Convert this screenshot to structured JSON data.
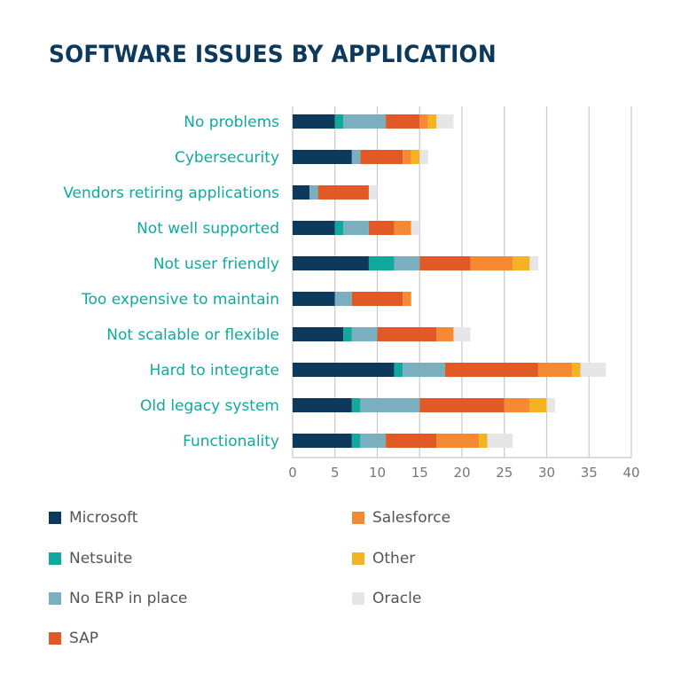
{
  "chart_data": {
    "type": "bar",
    "orientation": "horizontal",
    "stacked": true,
    "title": "SOFTWARE ISSUES BY APPLICATION",
    "categories": [
      "No problems",
      "Cybersecurity",
      "Vendors retiring applications",
      "Not well supported",
      "Not user friendly",
      "Too expensive to maintain",
      "Not scalable or flexible",
      "Hard to integrate",
      "Old legacy system",
      "Functionality"
    ],
    "series": [
      {
        "name": "Microsoft",
        "color": "#0d3a5c",
        "values": [
          5,
          7,
          2,
          5,
          9,
          5,
          6,
          12,
          7,
          7
        ]
      },
      {
        "name": "Netsuite",
        "color": "#12a89d",
        "values": [
          1,
          0,
          0,
          1,
          3,
          0,
          1,
          1,
          1,
          1
        ]
      },
      {
        "name": "No ERP in place",
        "color": "#7aafc0",
        "values": [
          5,
          1,
          1,
          3,
          3,
          2,
          3,
          5,
          7,
          3
        ]
      },
      {
        "name": "SAP",
        "color": "#e05a28",
        "values": [
          4,
          5,
          6,
          3,
          6,
          6,
          7,
          11,
          10,
          6
        ]
      },
      {
        "name": "Salesforce",
        "color": "#f58a34",
        "values": [
          1,
          1,
          0,
          2,
          5,
          1,
          2,
          4,
          3,
          5
        ]
      },
      {
        "name": "Other",
        "color": "#f5b324",
        "values": [
          1,
          1,
          0,
          0,
          2,
          0,
          0,
          1,
          2,
          1
        ]
      },
      {
        "name": "Oracle",
        "color": "#e6e6e8",
        "values": [
          2,
          1,
          1,
          1,
          1,
          0,
          2,
          3,
          1,
          3
        ]
      }
    ],
    "xlim": [
      0,
      40
    ],
    "xticks": [
      "0",
      "5",
      "10",
      "15",
      "20",
      "25",
      "30",
      "35",
      "40"
    ],
    "grid": true,
    "legend_placement": "bottom",
    "label_color": "#12a89d",
    "title_color": "#0d3a5c"
  }
}
